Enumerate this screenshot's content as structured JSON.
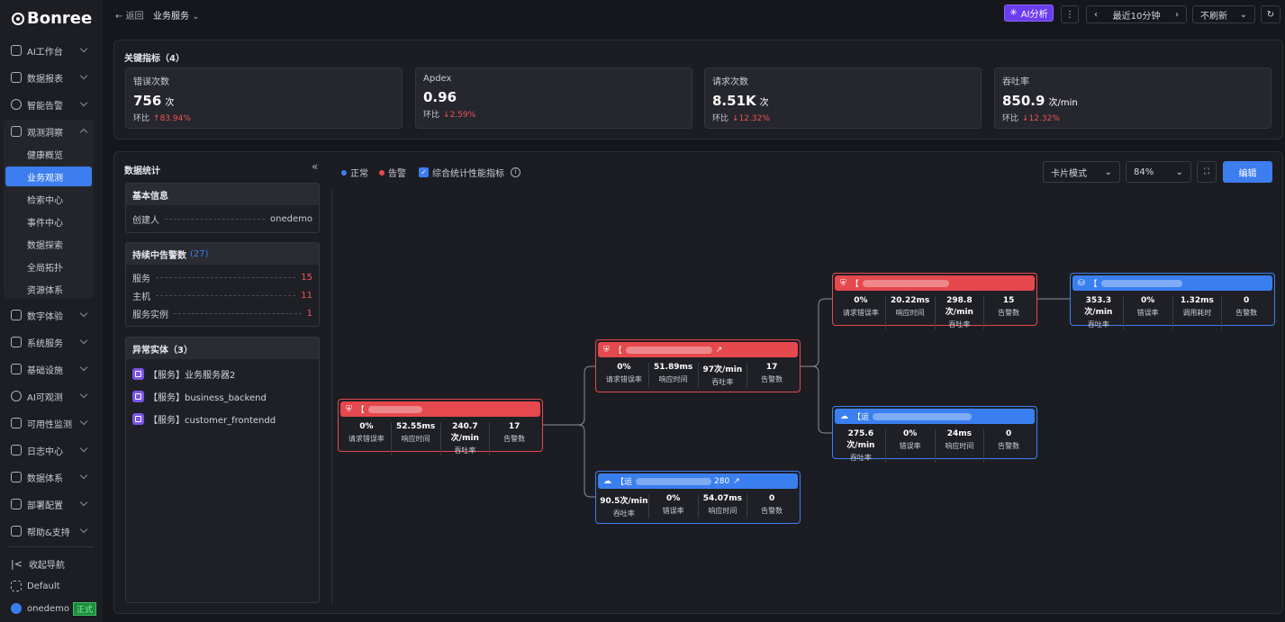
{
  "brand": "Bonree",
  "nav": [
    {
      "label": "AI工作台"
    },
    {
      "label": "数据报表"
    },
    {
      "label": "智能告警"
    },
    {
      "label": "观测洞察"
    }
  ],
  "nav2": [
    {
      "label": "数字体验"
    },
    {
      "label": "系统服务"
    },
    {
      "label": "基础设施"
    },
    {
      "label": "AI可观测"
    },
    {
      "label": "可用性监测"
    },
    {
      "label": "日志中心"
    },
    {
      "label": "数据体系"
    },
    {
      "label": "部署配置"
    },
    {
      "label": "帮助&支持"
    }
  ],
  "sub": [
    "健康概览",
    "业务观测",
    "检索中心",
    "事件中心",
    "数据探索",
    "全局拓扑",
    "资源体系"
  ],
  "footer": {
    "collapse": "收起导航",
    "workspace": "Default",
    "user": "onedemo",
    "badge": "正式"
  },
  "top": {
    "back": "返回",
    "title": "业务服务",
    "ai": "AI分析",
    "range": "最近10分钟",
    "refresh": "不刷新"
  },
  "kpi": {
    "title": "关键指标（4）",
    "cards": [
      {
        "label": "错误次数",
        "value": "756",
        "unit": "次",
        "cmp": "环比",
        "delta": "83.94%",
        "dir": "up"
      },
      {
        "label": "Apdex",
        "value": "0.96",
        "unit": "",
        "cmp": "环比",
        "delta": "2.59%",
        "dir": "down"
      },
      {
        "label": "请求次数",
        "value": "8.51K",
        "unit": "次",
        "cmp": "环比",
        "delta": "12.32%",
        "dir": "down"
      },
      {
        "label": "吞吐率",
        "value": "850.9",
        "unit": "次/min",
        "cmp": "环比",
        "delta": "12.32%",
        "dir": "down"
      }
    ]
  },
  "stats": {
    "title": "数据统计",
    "basic_title": "基本信息",
    "creator_label": "创建人",
    "creator": "onedemo",
    "alerts_title": "持续中告警数",
    "alerts_count": "(27)",
    "alerts": [
      {
        "label": "服务",
        "n": "15"
      },
      {
        "label": "主机",
        "n": "11"
      },
      {
        "label": "服务实例",
        "n": "1"
      }
    ],
    "entities_title": "异常实体（3）",
    "entities": [
      "【服务】业务服务器2",
      "【服务】business_backend",
      "【服务】customer_frontendd"
    ]
  },
  "canvas": {
    "legend_normal": "正常",
    "legend_alert": "告警",
    "toggle": "综合统计性能指标",
    "mode": "卡片模式",
    "zoom": "84%",
    "edit": "编辑"
  },
  "nodes": [
    {
      "title": "【",
      "m": [
        [
          "0%",
          "请求错误率"
        ],
        [
          "52.55ms",
          "响应时间"
        ],
        [
          "240.7次/min",
          "吞吐率"
        ],
        [
          "17",
          "告警数"
        ]
      ]
    },
    {
      "title": "【",
      "m": [
        [
          "0%",
          "请求错误率"
        ],
        [
          "51.89ms",
          "响应时间"
        ],
        [
          "97次/min",
          "吞吐率"
        ],
        [
          "17",
          "告警数"
        ]
      ]
    },
    {
      "title": "【运",
      "tail": "280",
      "m": [
        [
          "90.5次/min",
          "吞吐率"
        ],
        [
          "0%",
          "错误率"
        ],
        [
          "54.07ms",
          "响应时间"
        ],
        [
          "0",
          "告警数"
        ]
      ]
    },
    {
      "title": "【",
      "m": [
        [
          "0%",
          "请求错误率"
        ],
        [
          "20.22ms",
          "响应时间"
        ],
        [
          "298.8次/min",
          "吞吐率"
        ],
        [
          "15",
          "告警数"
        ]
      ]
    },
    {
      "title": "【运",
      "m": [
        [
          "275.6次/min",
          "吞吐率"
        ],
        [
          "0%",
          "错误率"
        ],
        [
          "24ms",
          "响应时间"
        ],
        [
          "0",
          "告警数"
        ]
      ]
    },
    {
      "title": "【",
      "m": [
        [
          "353.3次/min",
          "吞吐率"
        ],
        [
          "0%",
          "错误率"
        ],
        [
          "1.32ms",
          "调用耗时"
        ],
        [
          "0",
          "告警数"
        ]
      ]
    }
  ]
}
